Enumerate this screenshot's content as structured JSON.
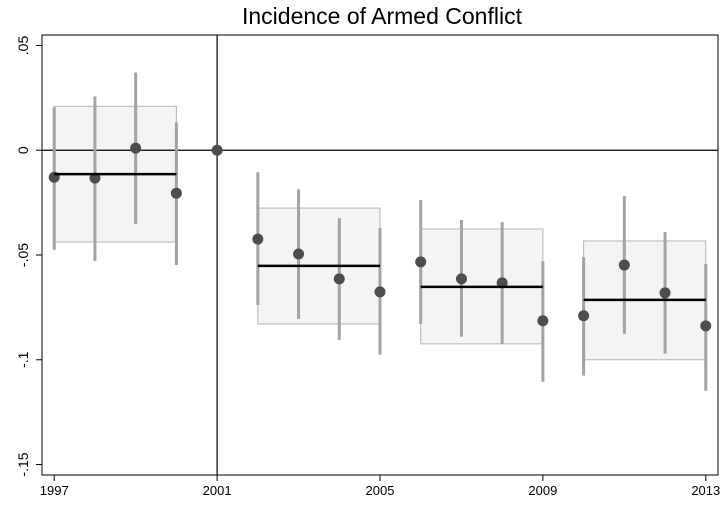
{
  "chart_data": {
    "type": "errorbar",
    "title": "Incidence of Armed Conflict",
    "series": [
      {
        "color": "#4d4d4d",
        "bar_color": "#a3a3a3",
        "x": [
          1997,
          1998,
          1999,
          2000,
          2001,
          2002,
          2003,
          2004,
          2005,
          2006,
          2007,
          2008,
          2009,
          2010,
          2011,
          2012,
          2013
        ],
        "values": [
          -0.0129,
          -0.0133,
          0.001,
          -0.0205,
          0,
          -0.0424,
          -0.0495,
          -0.0614,
          -0.0676,
          -0.0533,
          -0.0614,
          -0.0633,
          -0.0814,
          -0.079,
          -0.0548,
          -0.0681,
          -0.0838
        ],
        "lower": [
          -0.0476,
          -0.0529,
          -0.0352,
          -0.0548,
          null,
          -0.0738,
          -0.0805,
          -0.0905,
          -0.0976,
          -0.0829,
          -0.089,
          -0.0924,
          -0.1105,
          -0.1076,
          -0.0876,
          -0.0971,
          -0.1148
        ],
        "upper": [
          0.0205,
          0.0257,
          0.0371,
          0.0133,
          null,
          -0.0105,
          -0.0186,
          -0.0324,
          -0.0371,
          -0.0238,
          -0.0333,
          -0.0343,
          -0.0529,
          -0.051,
          -0.0219,
          -0.039,
          -0.0543
        ]
      }
    ],
    "groups": [
      {
        "start": 1997,
        "end": 2000,
        "mean": -0.0114,
        "lower": -0.0438,
        "upper": 0.021
      },
      {
        "start": 2002,
        "end": 2005,
        "mean": -0.0552,
        "lower": -0.0829,
        "upper": -0.0276
      },
      {
        "start": 2006,
        "end": 2009,
        "mean": -0.0652,
        "lower": -0.0924,
        "upper": -0.0376
      },
      {
        "start": 2010,
        "end": 2013,
        "mean": -0.0714,
        "lower": -0.1,
        "upper": -0.0433
      }
    ],
    "vline": 2001,
    "hline": 0,
    "xlim": [
      1996.7,
      2013.3
    ],
    "xticks": [
      1997,
      2001,
      2005,
      2009,
      2013
    ],
    "ylim": [
      -0.155,
      0.055
    ],
    "yticks": [
      {
        "value": 0.05,
        "label": ".05"
      },
      0,
      {
        "value": -0.05,
        "label": "-.05"
      },
      {
        "value": -0.1,
        "label": "-.1"
      },
      {
        "value": -0.15,
        "label": "-.15"
      }
    ]
  }
}
